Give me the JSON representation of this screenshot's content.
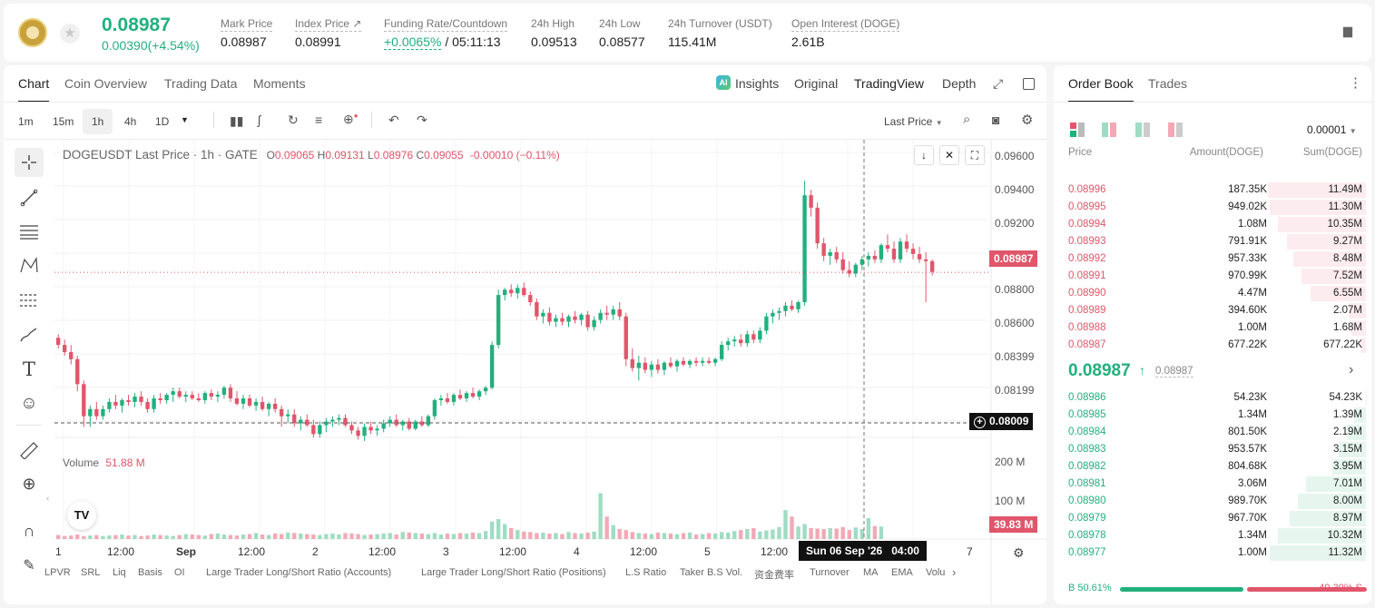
{
  "header": {
    "price": "0.08987",
    "change": "0.00390(+4.54%)",
    "stats": [
      {
        "label": "Mark Price",
        "value": "0.08987"
      },
      {
        "label": "Index Price ↗",
        "value": "0.08991"
      },
      {
        "label": "Funding Rate/Countdown",
        "value_green": "+0.0065%",
        "value": "/ 05:11:13"
      },
      {
        "label": "24h High",
        "value": "0.09513"
      },
      {
        "label": "24h Low",
        "value": "0.08577"
      },
      {
        "label": "24h Turnover (USDT)",
        "value": "115.41M"
      },
      {
        "label": "Open Interest (DOGE)",
        "value": "2.61B"
      }
    ]
  },
  "chart_tabs": [
    "Chart",
    "Coin Overview",
    "Trading Data",
    "Moments"
  ],
  "view_tabs": {
    "insights": "Insights",
    "original": "Original",
    "tradingview": "TradingView",
    "depth": "Depth"
  },
  "intervals": [
    "1m",
    "15m",
    "1h",
    "4h",
    "1D"
  ],
  "last_price_select": "Last Price",
  "chart_legend": {
    "symbol": "DOGEUSDT Last Price · 1h · GATE",
    "o_label": "O",
    "o": "0.09065",
    "h_label": "H",
    "h": "0.09131",
    "l_label": "L",
    "l": "0.08976",
    "c_label": "C",
    "c": "0.09055",
    "change": "-0.00010 (−0.11%)"
  },
  "volume_legend": {
    "label": "Volume",
    "value": "51.88 M"
  },
  "price_axis": [
    "0.09600",
    "0.09400",
    "0.09200",
    "0.08987",
    "0.08800",
    "0.08600",
    "0.08399",
    "0.08199"
  ],
  "current_price_tag": "0.08987",
  "crosshair_price_tag": "0.08009",
  "volume_axis": [
    "200 M",
    "100 M"
  ],
  "volume_tag": "39.83 M",
  "time_axis": [
    "1",
    "12:00",
    "Sep",
    "12:00",
    "2",
    "12:00",
    "3",
    "12:00",
    "4",
    "12:00",
    "5",
    "12:00",
    "7"
  ],
  "crosshair_time": "Sun 06 Sep '26   04:00",
  "indicators": [
    "LPVR",
    "SRL",
    "Liq",
    "Basis",
    "OI",
    "Large Trader Long/Short Ratio (Accounts)",
    "Large Trader Long/Short Ratio (Positions)",
    "L.S Ratio",
    "Taker B.S Vol.",
    "资金费率",
    "Turnover",
    "MA",
    "EMA",
    "Volu"
  ],
  "chart_data": {
    "type": "candlestick",
    "symbol": "DOGEUSDT",
    "interval": "1h",
    "ylim": [
      0.08,
      0.0966
    ],
    "candles": [
      [
        0.0862,
        0.0864,
        0.0856,
        0.0858
      ],
      [
        0.0858,
        0.0861,
        0.0852,
        0.0854
      ],
      [
        0.0854,
        0.0858,
        0.0847,
        0.085
      ],
      [
        0.085,
        0.0852,
        0.0832,
        0.0836
      ],
      [
        0.0836,
        0.0838,
        0.0812,
        0.0818
      ],
      [
        0.0818,
        0.0824,
        0.0812,
        0.0822
      ],
      [
        0.0822,
        0.0826,
        0.0816,
        0.0818
      ],
      [
        0.0818,
        0.0824,
        0.0816,
        0.0822
      ],
      [
        0.0822,
        0.0828,
        0.082,
        0.0826
      ],
      [
        0.0826,
        0.083,
        0.0822,
        0.0824
      ],
      [
        0.0824,
        0.0828,
        0.082,
        0.0827
      ],
      [
        0.0827,
        0.083,
        0.0824,
        0.0826
      ],
      [
        0.0826,
        0.0831,
        0.0823,
        0.0829
      ],
      [
        0.0829,
        0.0832,
        0.0824,
        0.0826
      ],
      [
        0.0826,
        0.0828,
        0.082,
        0.0822
      ],
      [
        0.0822,
        0.083,
        0.082,
        0.0828
      ],
      [
        0.0828,
        0.0831,
        0.0825,
        0.0827
      ],
      [
        0.0827,
        0.0831,
        0.0825,
        0.083
      ],
      [
        0.083,
        0.0834,
        0.0826,
        0.0832
      ],
      [
        0.0832,
        0.0834,
        0.0828,
        0.0829
      ],
      [
        0.0829,
        0.0832,
        0.0826,
        0.083
      ],
      [
        0.083,
        0.0832,
        0.0827,
        0.0828
      ],
      [
        0.0828,
        0.0831,
        0.0826,
        0.0827
      ],
      [
        0.0827,
        0.0832,
        0.0825,
        0.0831
      ],
      [
        0.0831,
        0.0833,
        0.0827,
        0.0829
      ],
      [
        0.0829,
        0.0832,
        0.0826,
        0.083
      ],
      [
        0.083,
        0.0835,
        0.0828,
        0.0834
      ],
      [
        0.0834,
        0.0836,
        0.0826,
        0.0828
      ],
      [
        0.0828,
        0.0832,
        0.0824,
        0.0825
      ],
      [
        0.0825,
        0.083,
        0.0822,
        0.0828
      ],
      [
        0.0828,
        0.083,
        0.0823,
        0.0824
      ],
      [
        0.0824,
        0.0828,
        0.0821,
        0.0826
      ],
      [
        0.0826,
        0.0829,
        0.0821,
        0.0822
      ],
      [
        0.0822,
        0.0826,
        0.0818,
        0.0825
      ],
      [
        0.0825,
        0.0828,
        0.082,
        0.0822
      ],
      [
        0.0822,
        0.0824,
        0.0812,
        0.0818
      ],
      [
        0.0818,
        0.0822,
        0.0814,
        0.0819
      ],
      [
        0.0819,
        0.0822,
        0.0812,
        0.0814
      ],
      [
        0.0814,
        0.0818,
        0.081,
        0.0816
      ],
      [
        0.0816,
        0.0819,
        0.0812,
        0.0813
      ],
      [
        0.0813,
        0.0816,
        0.0806,
        0.0808
      ],
      [
        0.0808,
        0.0815,
        0.0806,
        0.0813
      ],
      [
        0.0813,
        0.0817,
        0.0809,
        0.0815
      ],
      [
        0.0815,
        0.0818,
        0.0812,
        0.0816
      ],
      [
        0.0816,
        0.0819,
        0.0813,
        0.0817
      ],
      [
        0.0817,
        0.0819,
        0.0812,
        0.0813
      ],
      [
        0.0813,
        0.0815,
        0.0808,
        0.081
      ],
      [
        0.081,
        0.0812,
        0.0805,
        0.0807
      ],
      [
        0.0807,
        0.0814,
        0.0804,
        0.0812
      ],
      [
        0.0812,
        0.0815,
        0.0808,
        0.081
      ],
      [
        0.081,
        0.0813,
        0.0807,
        0.0811
      ],
      [
        0.0811,
        0.0816,
        0.0809,
        0.0814
      ],
      [
        0.0814,
        0.0818,
        0.0812,
        0.0816
      ],
      [
        0.0816,
        0.0819,
        0.0812,
        0.0813
      ],
      [
        0.0813,
        0.0816,
        0.081,
        0.0815
      ],
      [
        0.0815,
        0.0817,
        0.081,
        0.0811
      ],
      [
        0.0811,
        0.0816,
        0.081,
        0.0815
      ],
      [
        0.0815,
        0.0818,
        0.0812,
        0.0813
      ],
      [
        0.0813,
        0.0819,
        0.0812,
        0.0818
      ],
      [
        0.0818,
        0.0828,
        0.0816,
        0.0827
      ],
      [
        0.0827,
        0.083,
        0.0824,
        0.0828
      ],
      [
        0.0828,
        0.0831,
        0.0825,
        0.0826
      ],
      [
        0.0826,
        0.0831,
        0.0824,
        0.083
      ],
      [
        0.083,
        0.0833,
        0.0827,
        0.0828
      ],
      [
        0.0828,
        0.0832,
        0.0826,
        0.0831
      ],
      [
        0.0831,
        0.0834,
        0.0828,
        0.0829
      ],
      [
        0.0829,
        0.0833,
        0.0827,
        0.0832
      ],
      [
        0.0832,
        0.0835,
        0.083,
        0.0834
      ],
      [
        0.0834,
        0.086,
        0.0833,
        0.0858
      ],
      [
        0.0858,
        0.0889,
        0.0856,
        0.0886
      ],
      [
        0.0886,
        0.089,
        0.0883,
        0.0889
      ],
      [
        0.0889,
        0.0892,
        0.0885,
        0.0887
      ],
      [
        0.0887,
        0.0892,
        0.0884,
        0.089
      ],
      [
        0.089,
        0.0893,
        0.0885,
        0.0886
      ],
      [
        0.0886,
        0.0888,
        0.088,
        0.0882
      ],
      [
        0.0882,
        0.0884,
        0.0872,
        0.0874
      ],
      [
        0.0874,
        0.0878,
        0.087,
        0.0876
      ],
      [
        0.0876,
        0.0879,
        0.0869,
        0.0871
      ],
      [
        0.0871,
        0.0875,
        0.0868,
        0.0873
      ],
      [
        0.0873,
        0.0876,
        0.0869,
        0.0871
      ],
      [
        0.0871,
        0.0875,
        0.0868,
        0.0874
      ],
      [
        0.0874,
        0.0877,
        0.087,
        0.0872
      ],
      [
        0.0872,
        0.0876,
        0.0869,
        0.0875
      ],
      [
        0.0875,
        0.0877,
        0.0866,
        0.0868
      ],
      [
        0.0868,
        0.0874,
        0.0866,
        0.0872
      ],
      [
        0.0872,
        0.0878,
        0.087,
        0.0876
      ],
      [
        0.0876,
        0.088,
        0.0872,
        0.0875
      ],
      [
        0.0875,
        0.088,
        0.0872,
        0.0878
      ],
      [
        0.0878,
        0.0882,
        0.0872,
        0.0874
      ],
      [
        0.0874,
        0.0876,
        0.0846,
        0.085
      ],
      [
        0.085,
        0.0856,
        0.0843,
        0.0845
      ],
      [
        0.0845,
        0.0852,
        0.0838,
        0.0848
      ],
      [
        0.0848,
        0.0851,
        0.0842,
        0.0844
      ],
      [
        0.0844,
        0.0849,
        0.084,
        0.0847
      ],
      [
        0.0847,
        0.085,
        0.0842,
        0.0844
      ],
      [
        0.0844,
        0.0849,
        0.0841,
        0.0848
      ],
      [
        0.0848,
        0.0851,
        0.0845,
        0.0846
      ],
      [
        0.0846,
        0.085,
        0.0843,
        0.0849
      ],
      [
        0.0849,
        0.0851,
        0.0846,
        0.0847
      ],
      [
        0.0847,
        0.085,
        0.0845,
        0.0849
      ],
      [
        0.0849,
        0.0851,
        0.0846,
        0.0848
      ],
      [
        0.0848,
        0.0851,
        0.0846,
        0.0849
      ],
      [
        0.0849,
        0.0851,
        0.0847,
        0.0848
      ],
      [
        0.0848,
        0.0851,
        0.0846,
        0.085
      ],
      [
        0.085,
        0.086,
        0.0849,
        0.0858
      ],
      [
        0.0858,
        0.0862,
        0.0855,
        0.086
      ],
      [
        0.086,
        0.0863,
        0.0857,
        0.0861
      ],
      [
        0.0861,
        0.0864,
        0.0857,
        0.0859
      ],
      [
        0.0859,
        0.0866,
        0.0857,
        0.0864
      ],
      [
        0.0864,
        0.0866,
        0.0859,
        0.0861
      ],
      [
        0.0861,
        0.0868,
        0.0859,
        0.0866
      ],
      [
        0.0866,
        0.0876,
        0.0864,
        0.0874
      ],
      [
        0.0874,
        0.0878,
        0.087,
        0.0876
      ],
      [
        0.0876,
        0.0879,
        0.0872,
        0.0877
      ],
      [
        0.0877,
        0.0882,
        0.0874,
        0.088
      ],
      [
        0.088,
        0.0883,
        0.0877,
        0.0878
      ],
      [
        0.0878,
        0.0883,
        0.0876,
        0.0882
      ],
      [
        0.0882,
        0.095,
        0.088,
        0.0942
      ],
      [
        0.0942,
        0.0945,
        0.093,
        0.0935
      ],
      [
        0.0935,
        0.0938,
        0.0912,
        0.0915
      ],
      [
        0.0915,
        0.0918,
        0.0905,
        0.0908
      ],
      [
        0.0908,
        0.0912,
        0.0903,
        0.091
      ],
      [
        0.091,
        0.0913,
        0.0904,
        0.0906
      ],
      [
        0.0906,
        0.091,
        0.0898,
        0.09
      ],
      [
        0.09,
        0.0905,
        0.0896,
        0.0898
      ],
      [
        0.0898,
        0.0904,
        0.0896,
        0.0903
      ],
      [
        0.0903,
        0.0908,
        0.09,
        0.0906
      ],
      [
        0.0906,
        0.091,
        0.0902,
        0.0908
      ],
      [
        0.0908,
        0.0911,
        0.0904,
        0.0906
      ],
      [
        0.0906,
        0.0915,
        0.0904,
        0.0914
      ],
      [
        0.0914,
        0.092,
        0.091,
        0.0912
      ],
      [
        0.0912,
        0.0916,
        0.0904,
        0.0906
      ],
      [
        0.0906,
        0.0918,
        0.0904,
        0.0916
      ],
      [
        0.0916,
        0.092,
        0.091,
        0.0912
      ],
      [
        0.0912,
        0.0915,
        0.0906,
        0.0909
      ],
      [
        0.0909,
        0.0913,
        0.0904,
        0.0906
      ],
      [
        0.0906,
        0.091,
        0.0882,
        0.0905
      ],
      [
        0.0905,
        0.0906,
        0.0897,
        0.0899
      ]
    ],
    "volumes": [
      8,
      6,
      7,
      9,
      6,
      7,
      8,
      6,
      7,
      8,
      9,
      7,
      8,
      6,
      7,
      9,
      8,
      7,
      6,
      8,
      10,
      9,
      8,
      7,
      10,
      11,
      9,
      8,
      7,
      9,
      10,
      12,
      9,
      8,
      11,
      10,
      13,
      12,
      11,
      10,
      9,
      8,
      10,
      11,
      9,
      12,
      11,
      10,
      8,
      9,
      10,
      11,
      12,
      9,
      14,
      13,
      12,
      11,
      10,
      12,
      9,
      11,
      10,
      12,
      11,
      13,
      12,
      16,
      35,
      40,
      30,
      22,
      18,
      15,
      14,
      12,
      13,
      11,
      12,
      10,
      14,
      12,
      11,
      13,
      15,
      92,
      45,
      28,
      20,
      18,
      14,
      12,
      11,
      10,
      13,
      12,
      11,
      10,
      12,
      13,
      9,
      10,
      12,
      11,
      14,
      13,
      16,
      18,
      20,
      22,
      15,
      17,
      19,
      24,
      58,
      45,
      25,
      30,
      22,
      21,
      20,
      22,
      21,
      24,
      18,
      23,
      20,
      42,
      26,
      25
    ],
    "vol_max": 200
  },
  "order_book": {
    "tabs": [
      "Order Book",
      "Trades"
    ],
    "precision": "0.00001",
    "headers": [
      "Price",
      "Amount(DOGE)",
      "Sum(DOGE)"
    ],
    "asks": [
      {
        "price": "0.08996",
        "amount": "187.35K",
        "sum": "11.49M",
        "depth": 11.49
      },
      {
        "price": "0.08995",
        "amount": "949.02K",
        "sum": "11.30M",
        "depth": 11.3
      },
      {
        "price": "0.08994",
        "amount": "1.08M",
        "sum": "10.35M",
        "depth": 10.35
      },
      {
        "price": "0.08993",
        "amount": "791.91K",
        "sum": "9.27M",
        "depth": 9.27
      },
      {
        "price": "0.08992",
        "amount": "957.33K",
        "sum": "8.48M",
        "depth": 8.48
      },
      {
        "price": "0.08991",
        "amount": "970.99K",
        "sum": "7.52M",
        "depth": 7.52
      },
      {
        "price": "0.08990",
        "amount": "4.47M",
        "sum": "6.55M",
        "depth": 6.55
      },
      {
        "price": "0.08989",
        "amount": "394.60K",
        "sum": "2.07M",
        "depth": 2.07
      },
      {
        "price": "0.08988",
        "amount": "1.00M",
        "sum": "1.68M",
        "depth": 1.68
      },
      {
        "price": "0.08987",
        "amount": "677.22K",
        "sum": "677.22K",
        "depth": 0.68
      }
    ],
    "mid_price": "0.08987",
    "mid_mark": "0.08987",
    "bids": [
      {
        "price": "0.08986",
        "amount": "54.23K",
        "sum": "54.23K",
        "depth": 0.05
      },
      {
        "price": "0.08985",
        "amount": "1.34M",
        "sum": "1.39M",
        "depth": 1.39
      },
      {
        "price": "0.08984",
        "amount": "801.50K",
        "sum": "2.19M",
        "depth": 2.19
      },
      {
        "price": "0.08983",
        "amount": "953.57K",
        "sum": "3.15M",
        "depth": 3.15
      },
      {
        "price": "0.08982",
        "amount": "804.68K",
        "sum": "3.95M",
        "depth": 3.95
      },
      {
        "price": "0.08981",
        "amount": "3.06M",
        "sum": "7.01M",
        "depth": 7.01
      },
      {
        "price": "0.08980",
        "amount": "989.70K",
        "sum": "8.00M",
        "depth": 8.0
      },
      {
        "price": "0.08979",
        "amount": "967.70K",
        "sum": "8.97M",
        "depth": 8.97
      },
      {
        "price": "0.08978",
        "amount": "1.34M",
        "sum": "10.32M",
        "depth": 10.32
      },
      {
        "price": "0.08977",
        "amount": "1.00M",
        "sum": "11.32M",
        "depth": 11.32
      }
    ],
    "buy_ratio": "B 50.61%",
    "sell_ratio": "49.39% S",
    "buy_fraction": 0.5061
  },
  "colors": {
    "up": "#22b07d",
    "down": "#e0566b",
    "up_bar": "#9fdcc4",
    "down_bar": "#f2a9b5"
  }
}
